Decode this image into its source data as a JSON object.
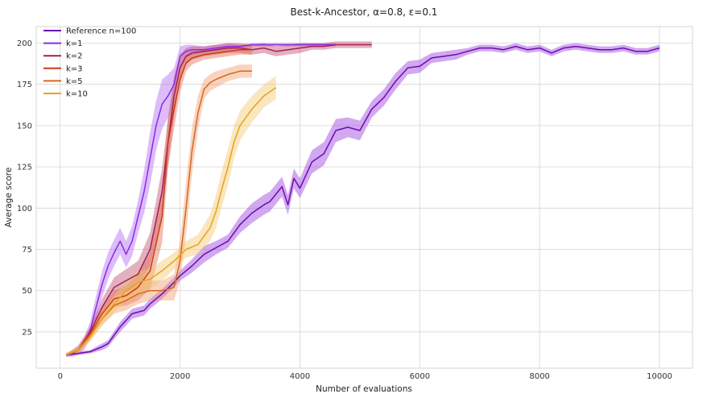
{
  "chart_data": {
    "type": "line",
    "title": "Best-k-Ancestor, α=0.8, ε=0.1",
    "xlabel": "Number of evaluations",
    "ylabel": "Average score",
    "xlim": [
      -400,
      10550
    ],
    "ylim": [
      3,
      210
    ],
    "xticks": [
      0,
      2000,
      4000,
      6000,
      8000,
      10000
    ],
    "yticks": [
      25,
      50,
      75,
      100,
      125,
      150,
      175,
      200
    ],
    "grid": true,
    "legend_position": "top-left",
    "series": [
      {
        "name": "Reference n=100",
        "color": "#6a0dad",
        "band_color": "#9b3fe0",
        "x": [
          100,
          300,
          500,
          700,
          800,
          1000,
          1200,
          1400,
          1500,
          1700,
          1900,
          2000,
          2200,
          2400,
          2600,
          2800,
          3000,
          3200,
          3400,
          3500,
          3700,
          3800,
          3900,
          4000,
          4200,
          4400,
          4600,
          4800,
          5000,
          5200,
          5400,
          5600,
          5800,
          6000,
          6200,
          6400,
          6600,
          6800,
          7000,
          7200,
          7400,
          7600,
          7800,
          8000,
          8200,
          8400,
          8600,
          8800,
          9000,
          9200,
          9400,
          9600,
          9800,
          10000
        ],
        "y": [
          11,
          12,
          13,
          16,
          18,
          28,
          36,
          38,
          42,
          48,
          55,
          59,
          65,
          72,
          76,
          80,
          90,
          97,
          102,
          104,
          113,
          102,
          118,
          112,
          128,
          133,
          147,
          149,
          147,
          160,
          167,
          177,
          185,
          186,
          191,
          192,
          193,
          195,
          197,
          197,
          196,
          198,
          196,
          197,
          194,
          197,
          198,
          197,
          196,
          196,
          197,
          195,
          195,
          197
        ],
        "band": [
          1,
          1,
          1,
          2,
          2,
          3,
          3,
          3,
          3,
          3,
          3,
          3,
          4,
          5,
          4,
          4,
          5,
          6,
          6,
          6,
          6,
          6,
          6,
          6,
          7,
          7,
          7,
          6,
          6,
          5,
          5,
          5,
          4,
          4,
          3,
          3,
          3,
          2,
          2,
          2,
          2,
          2,
          2,
          2,
          2,
          2,
          2,
          2,
          2,
          2,
          2,
          2,
          2,
          2
        ]
      },
      {
        "name": "k=1",
        "color": "#8a2be2",
        "band_color": "#b36af5",
        "x": [
          100,
          200,
          300,
          400,
          500,
          600,
          700,
          800,
          900,
          1000,
          1100,
          1200,
          1300,
          1400,
          1500,
          1600,
          1700,
          1800,
          1900,
          2000,
          2100,
          2200,
          2400,
          2600,
          2800,
          3000,
          3200,
          3400,
          3600,
          3800,
          4000,
          4200,
          4400,
          4600
        ],
        "y": [
          11,
          12,
          14,
          18,
          26,
          40,
          54,
          65,
          73,
          80,
          72,
          80,
          95,
          110,
          130,
          150,
          163,
          168,
          175,
          192,
          195,
          196,
          196,
          197,
          198,
          198,
          199,
          199,
          199,
          199,
          199,
          199,
          199,
          199
        ],
        "band": [
          1,
          2,
          3,
          4,
          5,
          7,
          8,
          8,
          8,
          8,
          8,
          9,
          10,
          13,
          16,
          15,
          15,
          13,
          10,
          6,
          4,
          3,
          2,
          2,
          2,
          1,
          1,
          1,
          1,
          1,
          1,
          1,
          1,
          1
        ]
      },
      {
        "name": "k=2",
        "color": "#a31f5a",
        "band_color": "#c0506f",
        "x": [
          100,
          300,
          500,
          700,
          900,
          1100,
          1300,
          1500,
          1700,
          1800,
          1900,
          2000,
          2100,
          2200,
          2400,
          2600,
          2800,
          3000,
          3200,
          3400,
          3600,
          3800,
          4000,
          4200,
          4400,
          4600,
          4800,
          5000,
          5200
        ],
        "y": [
          11,
          14,
          25,
          40,
          52,
          56,
          60,
          75,
          110,
          140,
          168,
          185,
          192,
          194,
          195,
          196,
          197,
          197,
          196,
          197,
          195,
          196,
          197,
          198,
          198,
          199,
          199,
          199,
          199
        ],
        "band": [
          1,
          2,
          3,
          5,
          6,
          7,
          8,
          10,
          14,
          15,
          12,
          8,
          5,
          4,
          3,
          3,
          3,
          3,
          3,
          3,
          3,
          3,
          3,
          2,
          2,
          2,
          2,
          2,
          2
        ]
      },
      {
        "name": "k=3",
        "color": "#cc3a1a",
        "band_color": "#e07050",
        "x": [
          100,
          300,
          500,
          700,
          900,
          1100,
          1300,
          1500,
          1700,
          1800,
          1900,
          2000,
          2100,
          2200,
          2400,
          2600,
          2800,
          3000,
          3200
        ],
        "y": [
          11,
          14,
          24,
          36,
          45,
          47,
          52,
          62,
          95,
          140,
          160,
          178,
          188,
          191,
          193,
          194,
          195,
          196,
          196
        ],
        "band": [
          1,
          2,
          3,
          4,
          5,
          6,
          8,
          11,
          16,
          15,
          12,
          8,
          5,
          4,
          3,
          3,
          3,
          3,
          3
        ]
      },
      {
        "name": "k=5",
        "color": "#d9651e",
        "band_color": "#f0a070",
        "x": [
          100,
          300,
          500,
          700,
          900,
          1100,
          1300,
          1500,
          1700,
          1900,
          2000,
          2100,
          2200,
          2300,
          2400,
          2500,
          2600,
          2800,
          3000,
          3200
        ],
        "y": [
          11,
          14,
          23,
          33,
          41,
          44,
          48,
          50,
          50,
          52,
          68,
          100,
          135,
          158,
          172,
          176,
          178,
          181,
          183,
          183
        ],
        "band": [
          1,
          2,
          3,
          4,
          5,
          6,
          6,
          6,
          6,
          8,
          12,
          16,
          14,
          10,
          6,
          5,
          5,
          4,
          4,
          4
        ]
      },
      {
        "name": "k=10",
        "color": "#e8a317",
        "band_color": "#f5c870",
        "x": [
          100,
          300,
          500,
          700,
          900,
          1100,
          1300,
          1500,
          1700,
          1900,
          2100,
          2300,
          2500,
          2600,
          2700,
          2800,
          2900,
          3000,
          3200,
          3400,
          3600
        ],
        "y": [
          11,
          14,
          22,
          33,
          42,
          50,
          55,
          57,
          62,
          68,
          75,
          78,
          88,
          98,
          112,
          125,
          140,
          150,
          160,
          168,
          173
        ],
        "band": [
          1,
          2,
          3,
          4,
          5,
          6,
          7,
          6,
          6,
          5,
          5,
          6,
          8,
          10,
          11,
          11,
          10,
          9,
          8,
          7,
          7
        ]
      }
    ]
  }
}
